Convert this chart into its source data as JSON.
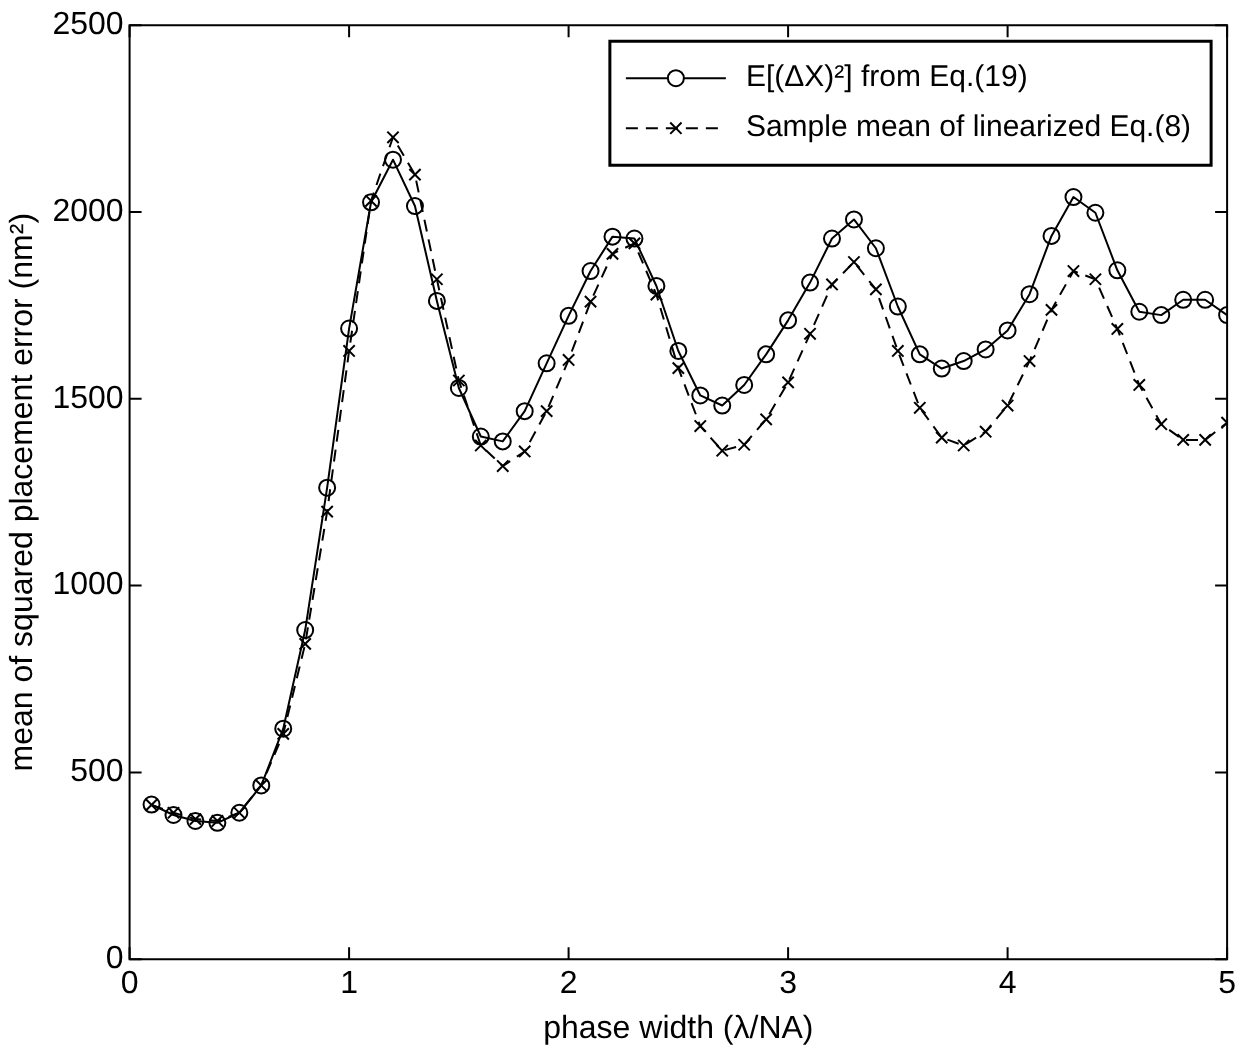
{
  "chart_data": {
    "type": "line",
    "xlabel": "phase width (λ/NA)",
    "ylabel": "mean of squared placement error (nm²)",
    "x": [
      0.1,
      0.2,
      0.3,
      0.4,
      0.5,
      0.6,
      0.7,
      0.8,
      0.9,
      1.0,
      1.1,
      1.2,
      1.3,
      1.4,
      1.5,
      1.6,
      1.7,
      1.8,
      1.9,
      2.0,
      2.1,
      2.2,
      2.3,
      2.4,
      2.5,
      2.6,
      2.7,
      2.8,
      2.9,
      3.0,
      3.1,
      3.2,
      3.3,
      3.4,
      3.5,
      3.6,
      3.7,
      3.8,
      3.9,
      4.0,
      4.1,
      4.2,
      4.3,
      4.4,
      4.5,
      4.6,
      4.7,
      4.8,
      4.9,
      5.0
    ],
    "series": [
      {
        "name": "E[(ΔX)²] from Eq.(19)",
        "color": "#000000",
        "marker": "circle",
        "line_style": "solid",
        "values": [
          414,
          386,
          370,
          365,
          392,
          465,
          617,
          881,
          1262,
          1688,
          2026,
          2140,
          2016,
          1762,
          1529,
          1399,
          1386,
          1467,
          1595,
          1722,
          1842,
          1934,
          1929,
          1802,
          1628,
          1509,
          1482,
          1537,
          1619,
          1710,
          1811,
          1929,
          1980,
          1903,
          1747,
          1619,
          1581,
          1601,
          1632,
          1683,
          1780,
          1936,
          2040,
          1998,
          1844,
          1733,
          1724,
          1765,
          1765,
          1724
        ]
      },
      {
        "name": "Sample mean of linearized Eq.(8)",
        "color": "#000000",
        "marker": "cross",
        "line_style": "dashed",
        "values": [
          413,
          392,
          375,
          370,
          392,
          465,
          603,
          844,
          1198,
          1628,
          2030,
          2200,
          2100,
          1820,
          1549,
          1375,
          1320,
          1359,
          1467,
          1604,
          1760,
          1888,
          1916,
          1779,
          1582,
          1427,
          1361,
          1377,
          1445,
          1544,
          1674,
          1806,
          1866,
          1793,
          1628,
          1476,
          1396,
          1375,
          1412,
          1482,
          1601,
          1738,
          1842,
          1820,
          1687,
          1537,
          1432,
          1390,
          1390,
          1436
        ]
      }
    ],
    "xlim": [
      0,
      5
    ],
    "xticks": [
      0,
      1,
      2,
      3,
      4,
      5
    ],
    "ylim": [
      0,
      2500
    ],
    "yticks": [
      0,
      500,
      1000,
      1500,
      2000,
      2500
    ],
    "grid": false,
    "legend": "top right"
  }
}
